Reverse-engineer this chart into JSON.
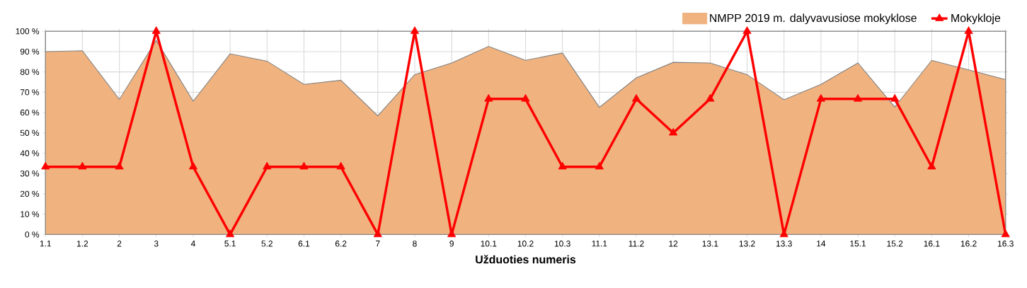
{
  "chart_data": {
    "type": "line",
    "xlabel": "Užduoties numeris",
    "categories": [
      "1.1",
      "1.2",
      "2",
      "3",
      "4",
      "5.1",
      "5.2",
      "6.1",
      "6.2",
      "7",
      "8",
      "9",
      "10.1",
      "10.2",
      "10.3",
      "11.1",
      "11.2",
      "12",
      "13.1",
      "13.2",
      "13.3",
      "14",
      "15.1",
      "15.2",
      "16.1",
      "16.2",
      "16.3"
    ],
    "series": [
      {
        "name": "NMPP 2019 m. dalyvavusiose mokyklose",
        "type": "area",
        "color": "#f0b380",
        "values": [
          90,
          90.4,
          66.5,
          95.5,
          65.6,
          88.9,
          85.3,
          73.9,
          75.9,
          58.4,
          78.7,
          84.4,
          92.6,
          85.7,
          89.3,
          62.6,
          77.1,
          84.7,
          84.4,
          78.7,
          66.3,
          73.9,
          84.4,
          62.7,
          85.7,
          81,
          76.2
        ]
      },
      {
        "name": "Mokykloje",
        "color": "#ff0000",
        "marker": "triangle",
        "values": [
          33.3,
          33.3,
          33.3,
          100,
          33.3,
          0,
          33.3,
          33.3,
          33.3,
          0,
          100,
          0,
          66.7,
          66.7,
          33.3,
          33.3,
          66.7,
          50,
          66.7,
          100,
          0,
          66.7,
          66.7,
          66.7,
          33.3,
          100,
          0
        ]
      }
    ],
    "ylim": [
      0,
      100
    ],
    "yticks": [
      {
        "value": 0,
        "label": "0 %"
      },
      {
        "value": 10,
        "label": "10 %"
      },
      {
        "value": 20,
        "label": "20 %"
      },
      {
        "value": 30,
        "label": "30 %"
      },
      {
        "value": 40,
        "label": "40 %"
      },
      {
        "value": 50,
        "label": "50 %"
      },
      {
        "value": 60,
        "label": "60 %"
      },
      {
        "value": 70,
        "label": "70 %"
      },
      {
        "value": 80,
        "label": "80 %"
      },
      {
        "value": 90,
        "label": "90 %"
      },
      {
        "value": 100,
        "label": "100 %"
      }
    ],
    "grid": true,
    "legend": "top right"
  }
}
